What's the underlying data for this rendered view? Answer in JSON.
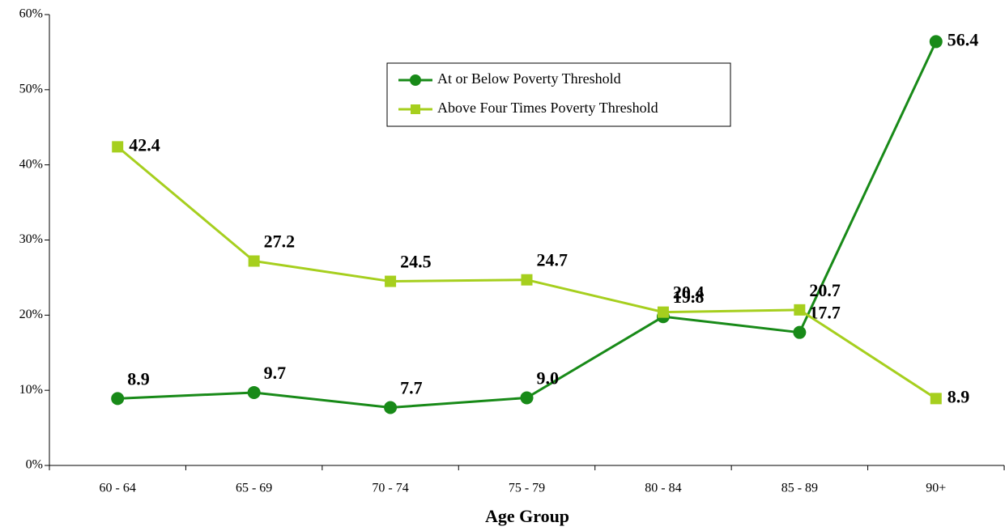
{
  "chart_data": {
    "type": "line",
    "x_label": "Age Group",
    "categories": [
      "60 - 64",
      "65 - 69",
      "70 - 74",
      "75 - 79",
      "80 - 84",
      "85 - 89",
      "90+"
    ],
    "series": [
      {
        "name": "At or Below Poverty Threshold",
        "color": "#188a18",
        "marker": "circle",
        "values": [
          8.9,
          9.7,
          7.7,
          9.0,
          19.8,
          17.7,
          56.4
        ],
        "value_labels": [
          "8.9",
          "9.7",
          "7.7",
          "9.0",
          "19.8",
          "17.7",
          "56.4"
        ]
      },
      {
        "name": "Above Four Times Poverty Threshold",
        "color": "#a6cf1e",
        "marker": "square",
        "values": [
          42.4,
          27.2,
          24.5,
          24.7,
          20.4,
          20.7,
          8.9
        ],
        "value_labels": [
          "42.4",
          "27.2",
          "24.5",
          "24.7",
          "20.4",
          "20.7",
          "8.9"
        ]
      }
    ],
    "ylim": [
      0,
      60
    ],
    "yticks": [
      {
        "value": 0,
        "label": "0%"
      },
      {
        "value": 10,
        "label": "10%"
      },
      {
        "value": 20,
        "label": "20%"
      },
      {
        "value": 30,
        "label": "30%"
      },
      {
        "value": 40,
        "label": "40%"
      },
      {
        "value": 50,
        "label": "50%"
      },
      {
        "value": 60,
        "label": "60%"
      }
    ],
    "grid": false
  }
}
